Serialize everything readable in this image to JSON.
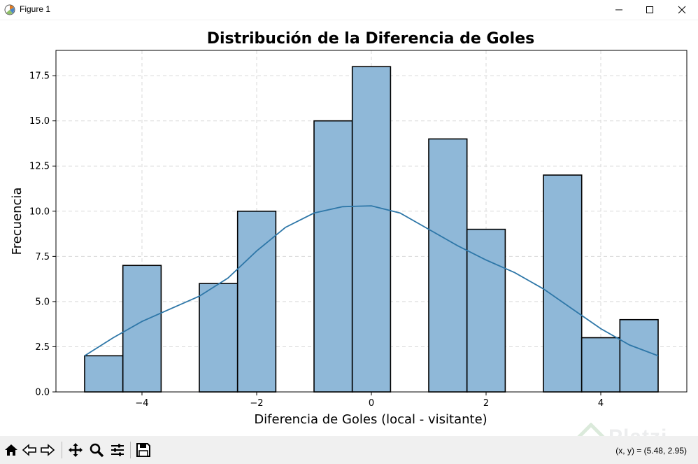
{
  "window": {
    "title": "Figure 1",
    "app_icon": "matplotlib-icon",
    "controls": [
      "minimize-icon",
      "maximize-icon",
      "close-icon"
    ]
  },
  "toolbar": {
    "buttons": [
      "home-icon",
      "back-arrow-icon",
      "forward-arrow-icon",
      "pan-icon",
      "zoom-icon",
      "configure-subplots-icon",
      "save-icon"
    ],
    "coords_text": "(x, y) = (5.48, 2.95)"
  },
  "watermark": {
    "text": "Platzi"
  },
  "colors": {
    "bar_fill": "#8fb8d8",
    "bar_edge": "#000000",
    "kde_line": "#2e77a8",
    "grid": "#d9d9d9"
  },
  "chart_data": {
    "type": "bar",
    "title": "Distribución de la Diferencia de Goles",
    "xlabel": "Diferencia de Goles (local - visitante)",
    "ylabel": "Frecuencia",
    "xlim": [
      -5.5,
      5.5
    ],
    "ylim": [
      0,
      18.9
    ],
    "grid": true,
    "bin_width": 0.667,
    "bins": [
      {
        "start": -5.0,
        "count": 2
      },
      {
        "start": -4.333,
        "count": 7
      },
      {
        "start": -3.667,
        "count": 0
      },
      {
        "start": -3.0,
        "count": 6
      },
      {
        "start": -2.333,
        "count": 10
      },
      {
        "start": -1.667,
        "count": 0
      },
      {
        "start": -1.0,
        "count": 15
      },
      {
        "start": -0.333,
        "count": 18
      },
      {
        "start": 0.333,
        "count": 0
      },
      {
        "start": 1.0,
        "count": 14
      },
      {
        "start": 1.667,
        "count": 9
      },
      {
        "start": 2.333,
        "count": 0
      },
      {
        "start": 3.0,
        "count": 12
      },
      {
        "start": 3.667,
        "count": 3
      },
      {
        "start": 4.333,
        "count": 4
      }
    ],
    "kde": {
      "x": [
        -5.0,
        -4.5,
        -4.0,
        -3.5,
        -3.0,
        -2.5,
        -2.0,
        -1.5,
        -1.0,
        -0.5,
        0.0,
        0.5,
        1.0,
        1.5,
        2.0,
        2.5,
        3.0,
        3.5,
        4.0,
        4.5,
        5.0
      ],
      "y": [
        2.0,
        3.0,
        3.9,
        4.6,
        5.3,
        6.3,
        7.8,
        9.1,
        9.9,
        10.25,
        10.3,
        9.9,
        9.0,
        8.1,
        7.3,
        6.6,
        5.7,
        4.6,
        3.5,
        2.6,
        2.0
      ]
    },
    "xticks": [
      -4,
      -2,
      0,
      2,
      4
    ],
    "xtick_labels": [
      "−4",
      "−2",
      "0",
      "2",
      "4"
    ],
    "yticks": [
      0.0,
      2.5,
      5.0,
      7.5,
      10.0,
      12.5,
      15.0,
      17.5
    ],
    "ytick_labels": [
      "0.0",
      "2.5",
      "5.0",
      "7.5",
      "10.0",
      "12.5",
      "15.0",
      "17.5"
    ]
  }
}
